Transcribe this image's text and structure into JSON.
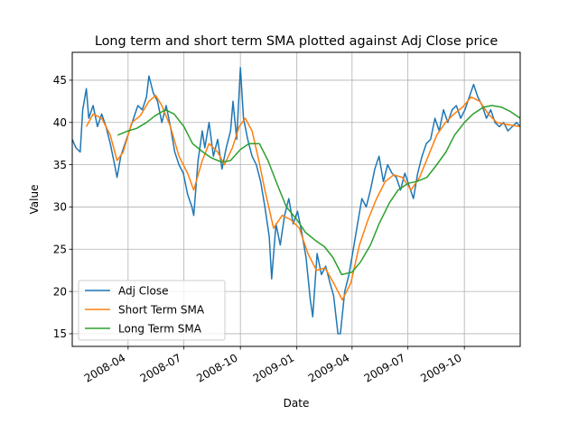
{
  "chart_data": {
    "type": "line",
    "title": "Long term and short term SMA plotted against Adj Close price",
    "xlabel": "Date",
    "ylabel": "Value",
    "xlim": [
      "2008-01-01",
      "2009-12-31"
    ],
    "ylim": [
      13.5,
      48.3
    ],
    "grid": true,
    "legend_position": "lower-left",
    "x_ticks": [
      {
        "date": "2008-04-01",
        "label": "2008-04"
      },
      {
        "date": "2008-07-01",
        "label": "2008-07"
      },
      {
        "date": "2008-10-01",
        "label": "2008-10"
      },
      {
        "date": "2009-01-01",
        "label": "2009-01"
      },
      {
        "date": "2009-04-01",
        "label": "2009-04"
      },
      {
        "date": "2009-07-01",
        "label": "2009-07"
      },
      {
        "date": "2009-10-01",
        "label": "2009-10"
      }
    ],
    "y_ticks": [
      15,
      20,
      25,
      30,
      35,
      40,
      45
    ],
    "series": [
      {
        "name": "Adj Close",
        "color": "#1f77b4",
        "points": [
          [
            "2008-01-01",
            38.0
          ],
          [
            "2008-01-07",
            37.0
          ],
          [
            "2008-01-14",
            36.5
          ],
          [
            "2008-01-18",
            41.5
          ],
          [
            "2008-01-24",
            44.0
          ],
          [
            "2008-01-28",
            40.5
          ],
          [
            "2008-02-04",
            42.0
          ],
          [
            "2008-02-11",
            39.5
          ],
          [
            "2008-02-18",
            41.0
          ],
          [
            "2008-02-25",
            39.5
          ],
          [
            "2008-03-03",
            37.5
          ],
          [
            "2008-03-10",
            35.0
          ],
          [
            "2008-03-14",
            33.5
          ],
          [
            "2008-03-20",
            36.0
          ],
          [
            "2008-03-27",
            37.5
          ],
          [
            "2008-04-03",
            39.0
          ],
          [
            "2008-04-10",
            40.5
          ],
          [
            "2008-04-17",
            42.0
          ],
          [
            "2008-04-24",
            41.5
          ],
          [
            "2008-05-01",
            43.0
          ],
          [
            "2008-05-05",
            45.5
          ],
          [
            "2008-05-12",
            43.5
          ],
          [
            "2008-05-19",
            42.5
          ],
          [
            "2008-05-26",
            40.0
          ],
          [
            "2008-06-02",
            42.0
          ],
          [
            "2008-06-09",
            39.5
          ],
          [
            "2008-06-16",
            36.5
          ],
          [
            "2008-06-23",
            35.0
          ],
          [
            "2008-06-30",
            34.0
          ],
          [
            "2008-07-07",
            31.5
          ],
          [
            "2008-07-14",
            30.0
          ],
          [
            "2008-07-17",
            29.0
          ],
          [
            "2008-07-24",
            35.5
          ],
          [
            "2008-07-31",
            39.0
          ],
          [
            "2008-08-04",
            37.0
          ],
          [
            "2008-08-11",
            40.0
          ],
          [
            "2008-08-18",
            36.0
          ],
          [
            "2008-08-25",
            38.0
          ],
          [
            "2008-09-01",
            34.5
          ],
          [
            "2008-09-08",
            37.0
          ],
          [
            "2008-09-15",
            39.0
          ],
          [
            "2008-09-19",
            42.5
          ],
          [
            "2008-09-25",
            38.0
          ],
          [
            "2008-10-01",
            46.5
          ],
          [
            "2008-10-06",
            40.5
          ],
          [
            "2008-10-13",
            38.0
          ],
          [
            "2008-10-20",
            36.0
          ],
          [
            "2008-10-27",
            35.0
          ],
          [
            "2008-11-03",
            33.0
          ],
          [
            "2008-11-10",
            30.0
          ],
          [
            "2008-11-17",
            26.5
          ],
          [
            "2008-11-21",
            21.5
          ],
          [
            "2008-11-28",
            28.0
          ],
          [
            "2008-12-05",
            25.5
          ],
          [
            "2008-12-12",
            29.0
          ],
          [
            "2008-12-19",
            31.0
          ],
          [
            "2008-12-26",
            28.0
          ],
          [
            "2009-01-02",
            29.5
          ],
          [
            "2009-01-09",
            27.0
          ],
          [
            "2009-01-16",
            24.0
          ],
          [
            "2009-01-23",
            19.0
          ],
          [
            "2009-01-27",
            17.0
          ],
          [
            "2009-02-03",
            24.5
          ],
          [
            "2009-02-10",
            22.0
          ],
          [
            "2009-02-17",
            23.0
          ],
          [
            "2009-02-24",
            21.0
          ],
          [
            "2009-03-02",
            19.5
          ],
          [
            "2009-03-09",
            15.0
          ],
          [
            "2009-03-13",
            15.0
          ],
          [
            "2009-03-20",
            20.0
          ],
          [
            "2009-03-27",
            22.0
          ],
          [
            "2009-04-03",
            25.0
          ],
          [
            "2009-04-10",
            28.0
          ],
          [
            "2009-04-17",
            31.0
          ],
          [
            "2009-04-24",
            30.0
          ],
          [
            "2009-05-01",
            32.0
          ],
          [
            "2009-05-08",
            34.5
          ],
          [
            "2009-05-15",
            36.0
          ],
          [
            "2009-05-22",
            33.0
          ],
          [
            "2009-05-29",
            35.0
          ],
          [
            "2009-06-05",
            34.0
          ],
          [
            "2009-06-12",
            33.5
          ],
          [
            "2009-06-19",
            32.0
          ],
          [
            "2009-06-26",
            34.0
          ],
          [
            "2009-07-03",
            32.5
          ],
          [
            "2009-07-10",
            31.0
          ],
          [
            "2009-07-17",
            34.0
          ],
          [
            "2009-07-24",
            36.0
          ],
          [
            "2009-07-31",
            37.5
          ],
          [
            "2009-08-07",
            38.0
          ],
          [
            "2009-08-14",
            40.5
          ],
          [
            "2009-08-21",
            39.0
          ],
          [
            "2009-08-28",
            41.5
          ],
          [
            "2009-09-04",
            40.0
          ],
          [
            "2009-09-11",
            41.5
          ],
          [
            "2009-09-18",
            42.0
          ],
          [
            "2009-09-25",
            40.5
          ],
          [
            "2009-10-02",
            41.5
          ],
          [
            "2009-10-09",
            43.0
          ],
          [
            "2009-10-16",
            44.5
          ],
          [
            "2009-10-23",
            43.0
          ],
          [
            "2009-10-30",
            42.0
          ],
          [
            "2009-11-06",
            40.5
          ],
          [
            "2009-11-13",
            41.5
          ],
          [
            "2009-11-20",
            40.0
          ],
          [
            "2009-11-27",
            39.5
          ],
          [
            "2009-12-04",
            40.0
          ],
          [
            "2009-12-11",
            39.0
          ],
          [
            "2009-12-18",
            39.5
          ],
          [
            "2009-12-25",
            40.0
          ],
          [
            "2009-12-31",
            39.5
          ]
        ]
      },
      {
        "name": "Short Term SMA",
        "color": "#ff7f0e",
        "points": [
          [
            "2008-01-24",
            39.5
          ],
          [
            "2008-02-04",
            41.0
          ],
          [
            "2008-02-18",
            40.5
          ],
          [
            "2008-03-03",
            38.5
          ],
          [
            "2008-03-14",
            35.5
          ],
          [
            "2008-03-24",
            36.5
          ],
          [
            "2008-04-07",
            40.0
          ],
          [
            "2008-04-21",
            40.8
          ],
          [
            "2008-05-05",
            42.5
          ],
          [
            "2008-05-16",
            43.2
          ],
          [
            "2008-05-26",
            42.0
          ],
          [
            "2008-06-09",
            39.5
          ],
          [
            "2008-06-23",
            36.0
          ],
          [
            "2008-07-07",
            34.0
          ],
          [
            "2008-07-17",
            32.0
          ],
          [
            "2008-07-31",
            35.5
          ],
          [
            "2008-08-11",
            37.5
          ],
          [
            "2008-08-25",
            36.5
          ],
          [
            "2008-09-05",
            35.0
          ],
          [
            "2008-09-18",
            37.0
          ],
          [
            "2008-09-29",
            39.5
          ],
          [
            "2008-10-09",
            40.5
          ],
          [
            "2008-10-20",
            39.0
          ],
          [
            "2008-10-31",
            35.5
          ],
          [
            "2008-11-10",
            32.0
          ],
          [
            "2008-11-24",
            27.5
          ],
          [
            "2008-12-08",
            29.0
          ],
          [
            "2008-12-22",
            28.5
          ],
          [
            "2009-01-05",
            27.5
          ],
          [
            "2009-01-19",
            24.5
          ],
          [
            "2009-02-02",
            22.5
          ],
          [
            "2009-02-16",
            22.8
          ],
          [
            "2009-03-02",
            21.0
          ],
          [
            "2009-03-16",
            19.0
          ],
          [
            "2009-03-30",
            21.0
          ],
          [
            "2009-04-13",
            25.5
          ],
          [
            "2009-04-27",
            28.5
          ],
          [
            "2009-05-11",
            31.0
          ],
          [
            "2009-05-25",
            33.0
          ],
          [
            "2009-06-08",
            33.8
          ],
          [
            "2009-06-22",
            33.5
          ],
          [
            "2009-07-06",
            32.0
          ],
          [
            "2009-07-20",
            33.5
          ],
          [
            "2009-08-03",
            36.0
          ],
          [
            "2009-08-17",
            38.5
          ],
          [
            "2009-08-31",
            40.0
          ],
          [
            "2009-09-14",
            41.0
          ],
          [
            "2009-09-28",
            41.8
          ],
          [
            "2009-10-12",
            43.0
          ],
          [
            "2009-10-26",
            42.5
          ],
          [
            "2009-11-09",
            41.0
          ],
          [
            "2009-11-23",
            40.0
          ],
          [
            "2009-12-07",
            39.8
          ],
          [
            "2009-12-31",
            39.5
          ]
        ]
      },
      {
        "name": "Long Term SMA",
        "color": "#2ca02c",
        "points": [
          [
            "2008-03-15",
            38.5
          ],
          [
            "2008-04-01",
            39.0
          ],
          [
            "2008-04-15",
            39.3
          ],
          [
            "2008-05-01",
            40.0
          ],
          [
            "2008-05-15",
            40.8
          ],
          [
            "2008-06-01",
            41.5
          ],
          [
            "2008-06-15",
            41.0
          ],
          [
            "2008-07-01",
            39.5
          ],
          [
            "2008-07-15",
            37.5
          ],
          [
            "2008-08-01",
            36.5
          ],
          [
            "2008-08-15",
            35.8
          ],
          [
            "2008-09-01",
            35.3
          ],
          [
            "2008-09-15",
            35.5
          ],
          [
            "2008-10-01",
            36.8
          ],
          [
            "2008-10-15",
            37.5
          ],
          [
            "2008-11-01",
            37.5
          ],
          [
            "2008-11-15",
            35.5
          ],
          [
            "2008-12-01",
            32.5
          ],
          [
            "2008-12-15",
            30.0
          ],
          [
            "2009-01-01",
            28.5
          ],
          [
            "2009-01-15",
            27.0
          ],
          [
            "2009-02-01",
            26.0
          ],
          [
            "2009-02-15",
            25.3
          ],
          [
            "2009-03-01",
            24.0
          ],
          [
            "2009-03-15",
            22.0
          ],
          [
            "2009-04-01",
            22.3
          ],
          [
            "2009-04-15",
            23.5
          ],
          [
            "2009-05-01",
            25.5
          ],
          [
            "2009-05-15",
            28.0
          ],
          [
            "2009-06-01",
            30.5
          ],
          [
            "2009-06-15",
            32.0
          ],
          [
            "2009-07-01",
            32.8
          ],
          [
            "2009-07-15",
            33.0
          ],
          [
            "2009-08-01",
            33.5
          ],
          [
            "2009-08-15",
            34.8
          ],
          [
            "2009-09-01",
            36.5
          ],
          [
            "2009-09-15",
            38.5
          ],
          [
            "2009-10-01",
            40.0
          ],
          [
            "2009-10-15",
            41.0
          ],
          [
            "2009-11-01",
            41.8
          ],
          [
            "2009-11-15",
            42.0
          ],
          [
            "2009-12-01",
            41.8
          ],
          [
            "2009-12-15",
            41.3
          ],
          [
            "2009-12-31",
            40.5
          ]
        ]
      }
    ]
  }
}
